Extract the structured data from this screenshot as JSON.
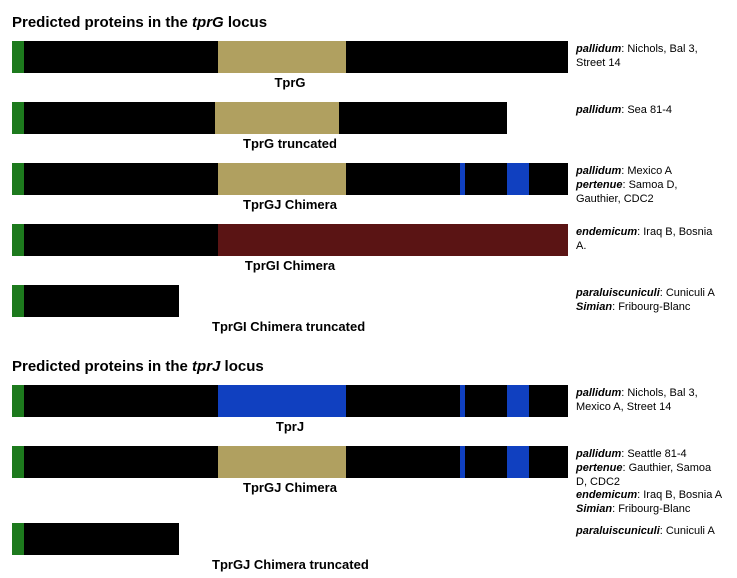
{
  "colors": {
    "base": "#000000",
    "green": "#1d7a1d",
    "tan": "#b0a060",
    "blue": "#1040c0",
    "darkred": "#5a1414",
    "bg": "#ffffff"
  },
  "sections": [
    {
      "title_prefix": "Predicted proteins in the ",
      "title_em": "tprG",
      "title_suffix": " locus",
      "tracks": [
        {
          "name": "TprG",
          "bar_width_pct": 100,
          "segments": [
            {
              "start": 0,
              "end": 2.2,
              "color": "green"
            },
            {
              "start": 2.2,
              "end": 100,
              "color": "base"
            },
            {
              "start": 37,
              "end": 60,
              "color": "tan"
            }
          ],
          "labels": [
            {
              "species": "pallidum",
              "strains": ": Nichols, Bal 3, Street 14"
            }
          ]
        },
        {
          "name": "TprG truncated",
          "bar_width_pct": 89,
          "segments": [
            {
              "start": 0,
              "end": 2.4,
              "color": "green"
            },
            {
              "start": 2.4,
              "end": 100,
              "color": "base"
            },
            {
              "start": 41,
              "end": 66,
              "color": "tan"
            }
          ],
          "labels": [
            {
              "species": "pallidum",
              "strains": ": Sea 81-4"
            }
          ]
        },
        {
          "name": "TprGJ Chimera",
          "bar_width_pct": 100,
          "segments": [
            {
              "start": 0,
              "end": 2.2,
              "color": "green"
            },
            {
              "start": 2.2,
              "end": 100,
              "color": "base"
            },
            {
              "start": 37,
              "end": 60,
              "color": "tan"
            },
            {
              "start": 80.5,
              "end": 81.5,
              "color": "blue"
            },
            {
              "start": 89,
              "end": 93,
              "color": "blue"
            }
          ],
          "labels": [
            {
              "species": "pallidum",
              "strains": ": Mexico A"
            },
            {
              "species": "pertenue",
              "strains": ": Samoa D, Gauthier, CDC2"
            }
          ]
        },
        {
          "name": "TprGI Chimera",
          "bar_width_pct": 100,
          "segments": [
            {
              "start": 0,
              "end": 2.2,
              "color": "green"
            },
            {
              "start": 2.2,
              "end": 100,
              "color": "base"
            },
            {
              "start": 37,
              "end": 100,
              "color": "darkred"
            }
          ],
          "labels": [
            {
              "species": "endemicum",
              "strains": ": Iraq B, Bosnia A."
            }
          ]
        },
        {
          "name": "TprGI Chimera truncated",
          "name_align": "left",
          "bar_width_pct": 30,
          "segments": [
            {
              "start": 0,
              "end": 7,
              "color": "green"
            },
            {
              "start": 7,
              "end": 100,
              "color": "base"
            }
          ],
          "labels": [
            {
              "species": "paraluiscuniculi",
              "strains": ": Cuniculi A"
            },
            {
              "species": "Simian",
              "strains": ": Fribourg-Blanc"
            }
          ]
        }
      ]
    },
    {
      "title_prefix": "Predicted proteins in the ",
      "title_em": "tprJ",
      "title_suffix": " locus",
      "tracks": [
        {
          "name": "TprJ",
          "bar_width_pct": 100,
          "segments": [
            {
              "start": 0,
              "end": 2.2,
              "color": "green"
            },
            {
              "start": 2.2,
              "end": 100,
              "color": "base"
            },
            {
              "start": 37,
              "end": 60,
              "color": "blue"
            },
            {
              "start": 80.5,
              "end": 81.5,
              "color": "blue"
            },
            {
              "start": 89,
              "end": 93,
              "color": "blue"
            }
          ],
          "labels": [
            {
              "species": "pallidum",
              "strains": ": Nichols, Bal 3, Mexico A, Street 14"
            }
          ]
        },
        {
          "name": "TprGJ Chimera",
          "bar_width_pct": 100,
          "segments": [
            {
              "start": 0,
              "end": 2.2,
              "color": "green"
            },
            {
              "start": 2.2,
              "end": 100,
              "color": "base"
            },
            {
              "start": 37,
              "end": 60,
              "color": "tan"
            },
            {
              "start": 80.5,
              "end": 81.5,
              "color": "blue"
            },
            {
              "start": 89,
              "end": 93,
              "color": "blue"
            }
          ],
          "labels": [
            {
              "species": "pallidum",
              "strains": ": Seattle 81-4"
            },
            {
              "species": "pertenue",
              "strains": ": Gauthier, Samoa D, CDC2"
            },
            {
              "species": "endemicum",
              "strains": ": Iraq B, Bosnia A"
            },
            {
              "species": "Simian",
              "strains": ": Fribourg-Blanc"
            }
          ]
        },
        {
          "name": "TprGJ Chimera truncated",
          "name_align": "left",
          "bar_width_pct": 30,
          "segments": [
            {
              "start": 0,
              "end": 7,
              "color": "green"
            },
            {
              "start": 7,
              "end": 100,
              "color": "base"
            }
          ],
          "labels": [
            {
              "species": "paraluiscuniculi",
              "strains": ": Cuniculi A"
            }
          ]
        }
      ]
    }
  ]
}
